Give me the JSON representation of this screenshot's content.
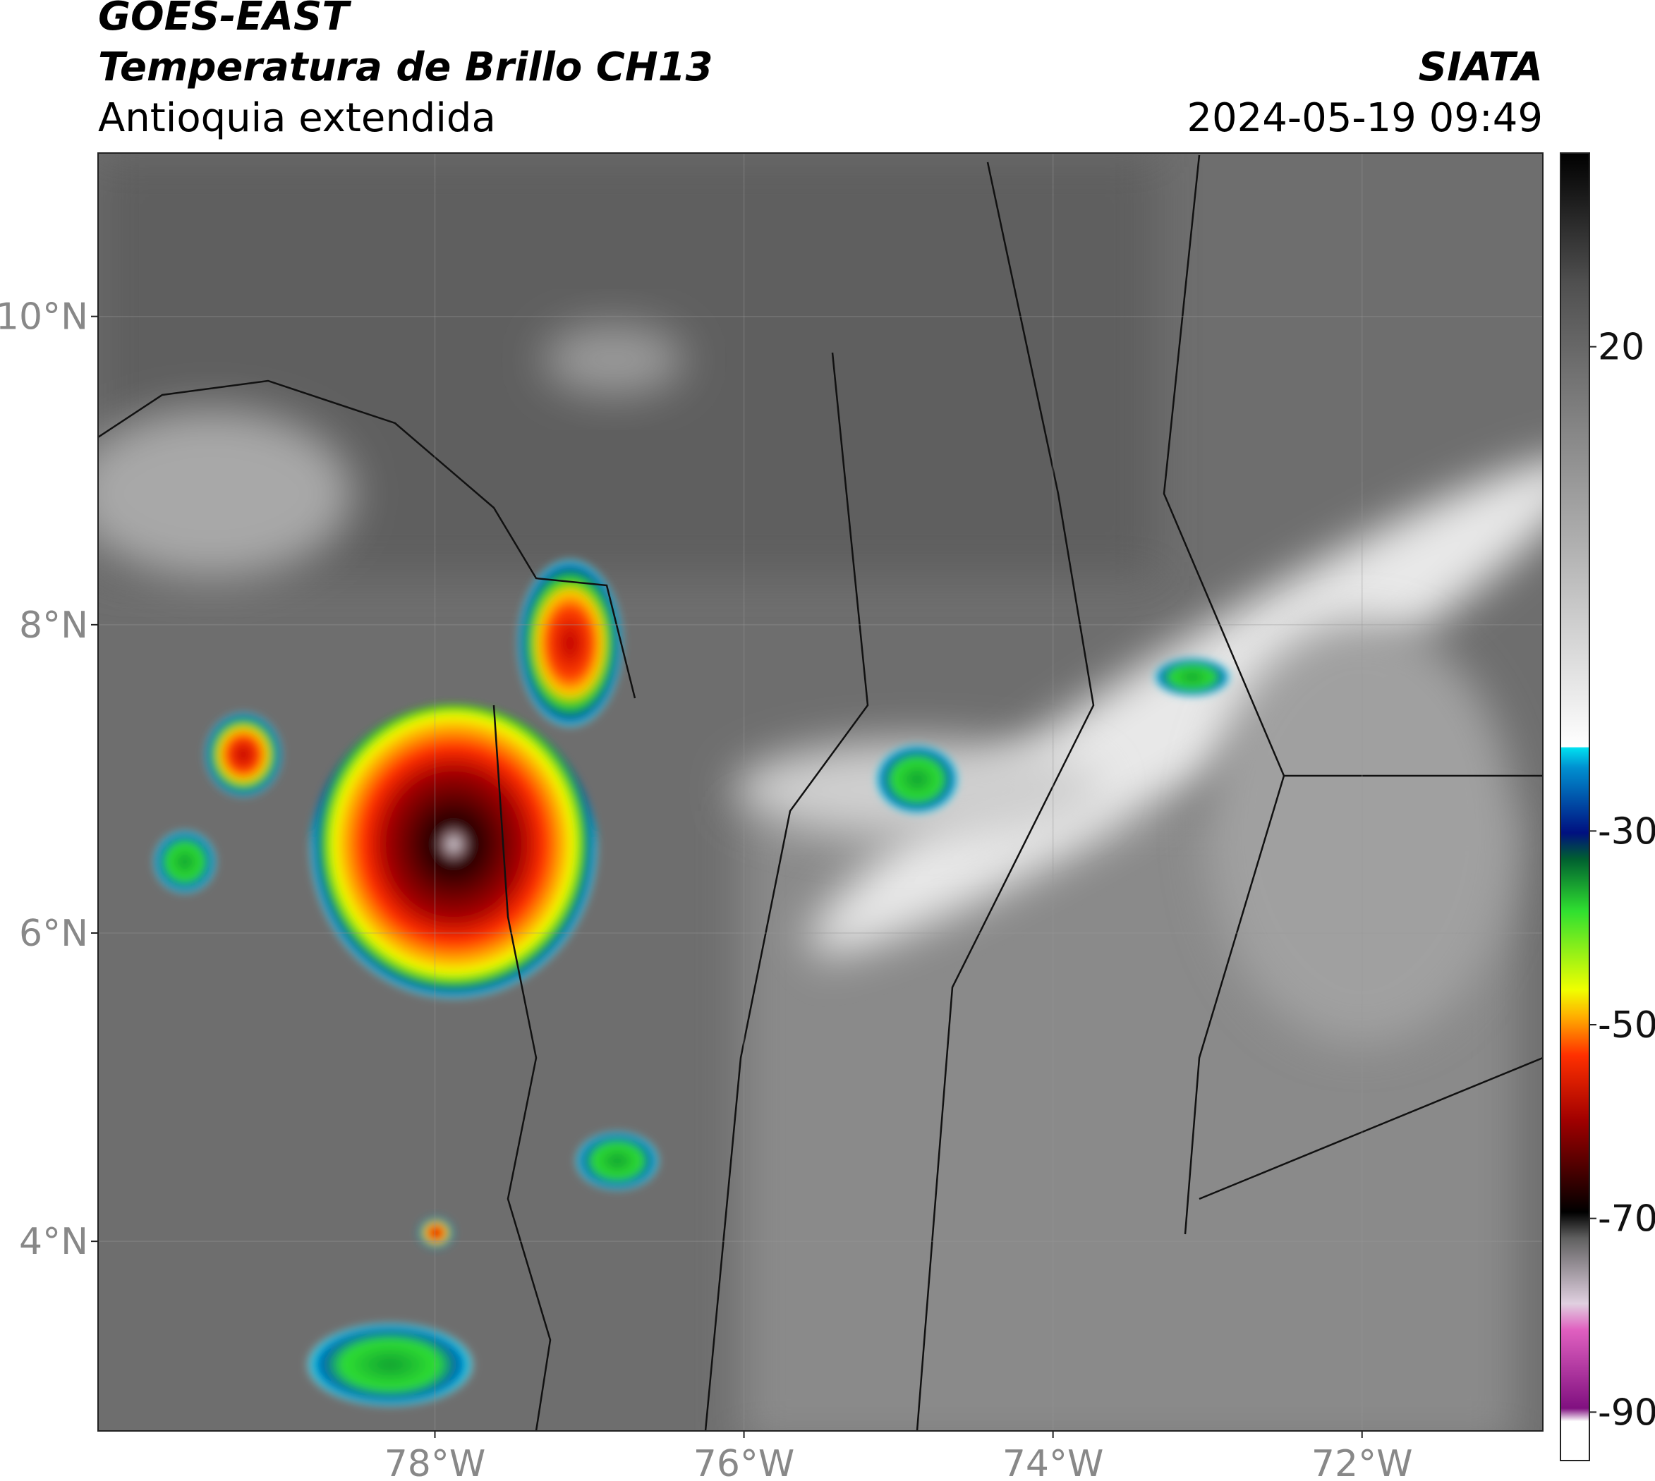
{
  "header": {
    "satellite": "GOES-EAST",
    "product": "Temperatura de Brillo CH13",
    "region": "Antioquia extendida",
    "source": "SIATA",
    "datetime": "2024-05-19 09:49"
  },
  "map": {
    "lonlim": [
      -80.18,
      -70.83
    ],
    "latlim": [
      2.77,
      11.06
    ],
    "lat_ticks": [
      {
        "value": 10,
        "label": "10°N"
      },
      {
        "value": 8,
        "label": "8°N"
      },
      {
        "value": 6,
        "label": "6°N"
      },
      {
        "value": 4,
        "label": "4°N"
      }
    ],
    "lon_ticks": [
      {
        "value": -78,
        "label": "78°W"
      },
      {
        "value": -76,
        "label": "76°W"
      },
      {
        "value": -74,
        "label": "74°W"
      },
      {
        "value": -72,
        "label": "72°W"
      }
    ]
  },
  "colorbar": {
    "range": [
      -95,
      40
    ],
    "ticks": [
      20,
      -30,
      -50,
      -70,
      -90
    ]
  }
}
